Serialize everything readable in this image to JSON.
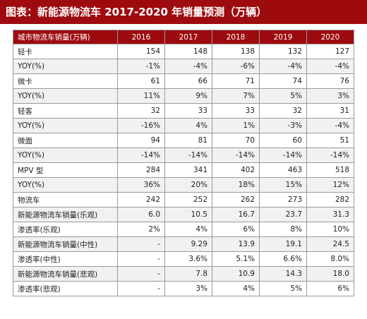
{
  "title": "图表：新能源物流车 2017-2020 年销量预测（万辆）",
  "colors": {
    "title_bg": "#9e0b0f",
    "header_bg": "#9e0b0f",
    "stripe": "#f1f1f1",
    "border": "#9a9a9a"
  },
  "table": {
    "header_label": "城市物流车销量(万辆)",
    "years": [
      "2016",
      "2017",
      "2018",
      "2019",
      "2020"
    ],
    "rows": [
      {
        "label": "轻卡",
        "values": [
          "154",
          "148",
          "138",
          "132",
          "127"
        ]
      },
      {
        "label": "YOY(%)",
        "values": [
          "-1%",
          "-4%",
          "-6%",
          "-4%",
          "-4%"
        ]
      },
      {
        "label": "微卡",
        "values": [
          "61",
          "66",
          "71",
          "74",
          "76"
        ]
      },
      {
        "label": "YOY(%)",
        "values": [
          "11%",
          "9%",
          "7%",
          "5%",
          "3%"
        ]
      },
      {
        "label": "轻客",
        "values": [
          "32",
          "33",
          "33",
          "32",
          "31"
        ]
      },
      {
        "label": "YOY(%)",
        "values": [
          "-16%",
          "4%",
          "1%",
          "-3%",
          "-4%"
        ]
      },
      {
        "label": "微面",
        "values": [
          "94",
          "81",
          "70",
          "60",
          "51"
        ]
      },
      {
        "label": "YOY(%)",
        "values": [
          "-14%",
          "-14%",
          "-14%",
          "-14%",
          "-14%"
        ]
      },
      {
        "label": "MPV 型",
        "values": [
          "284",
          "341",
          "402",
          "463",
          "518"
        ]
      },
      {
        "label": "YOY(%)",
        "values": [
          "36%",
          "20%",
          "18%",
          "15%",
          "12%"
        ]
      },
      {
        "label": "物流车",
        "values": [
          "242",
          "252",
          "262",
          "273",
          "282"
        ]
      },
      {
        "label": "新能源物流车销量(乐观)",
        "values": [
          "6.0",
          "10.5",
          "16.7",
          "23.7",
          "31.3"
        ]
      },
      {
        "label": "渗透率(乐观)",
        "values": [
          "2%",
          "4%",
          "6%",
          "8%",
          "10%"
        ]
      },
      {
        "label": "新能源物流车销量(中性)",
        "values": [
          "-",
          "9.29",
          "13.9",
          "19.1",
          "24.5"
        ]
      },
      {
        "label": "渗透率(中性)",
        "values": [
          "-",
          "3.6%",
          "5.1%",
          "6.6%",
          "8.0%"
        ]
      },
      {
        "label": "新能源物流车销量(悲观)",
        "values": [
          "-",
          "7.8",
          "10.9",
          "14.3",
          "18.0"
        ]
      },
      {
        "label": "渗透率(悲观)",
        "values": [
          "-",
          "3%",
          "4%",
          "5%",
          "6%"
        ]
      }
    ]
  }
}
